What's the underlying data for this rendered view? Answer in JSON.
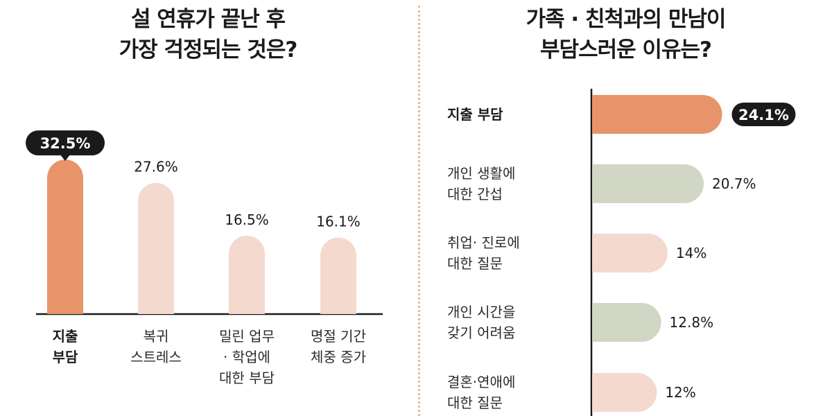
{
  "chart_data": [
    {
      "type": "bar",
      "orientation": "vertical",
      "title_lines": [
        "설 연휴가 끝난 후",
        "가장 걱정되는 것은?"
      ],
      "categories": [
        [
          "지출",
          "부담"
        ],
        [
          "복귀",
          "스트레스"
        ],
        [
          "밀린 업무",
          "· 학업에",
          "대한 부담"
        ],
        [
          "명절 기간",
          "체중 증가"
        ]
      ],
      "values": [
        32.5,
        27.6,
        16.5,
        16.1
      ],
      "value_labels": [
        "32.5%",
        "27.6%",
        "16.5%",
        "16.1%"
      ],
      "highlight_index": 0,
      "colors": [
        "#e8946a",
        "#f4d9cf",
        "#f4d9cf",
        "#f4d9cf"
      ],
      "ylim": [
        0,
        35
      ]
    },
    {
      "type": "bar",
      "orientation": "horizontal",
      "title_lines": [
        "가족 · 친척과의 만남이",
        "부담스러운 이유는?"
      ],
      "categories": [
        [
          "지출 부담"
        ],
        [
          "개인 생활에",
          "대한 간섭"
        ],
        [
          "취업· 진로에",
          "대한 질문"
        ],
        [
          "개인 시간을",
          "갖기 어려움"
        ],
        [
          "결혼·연애에",
          "대한 질문"
        ]
      ],
      "values": [
        24.1,
        20.7,
        14,
        12.8,
        12
      ],
      "value_labels": [
        "24.1%",
        "20.7%",
        "14%",
        "12.8%",
        "12%"
      ],
      "highlight_index": 0,
      "colors": [
        "#e8946a",
        "#d2d6c5",
        "#f4d9cf",
        "#d2d6c5",
        "#f4d9cf"
      ],
      "xlim": [
        0,
        27
      ]
    }
  ],
  "colors": {
    "axis": "#1a1a1a",
    "bubble": "#1a1a1a",
    "divider": "#e9b5a2"
  }
}
